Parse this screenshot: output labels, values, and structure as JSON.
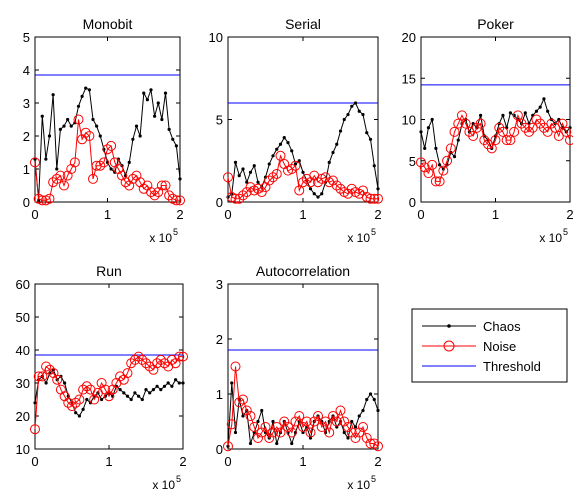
{
  "colors": {
    "chaos": "#000000",
    "noise": "#ff0000",
    "threshold": "#0000ff"
  },
  "legend": {
    "items": [
      "Chaos",
      "Noise",
      "Threshold"
    ]
  },
  "chart_data": [
    {
      "type": "line",
      "title": "Monobit",
      "xlim": [
        0,
        2
      ],
      "ylim": [
        0,
        5
      ],
      "xticks": [
        "0",
        "1",
        "2"
      ],
      "yticks": [
        "0",
        "1",
        "2",
        "3",
        "4",
        "5"
      ],
      "multiplier": {
        "base": "x 10",
        "exp": "5"
      },
      "threshold": 3.85,
      "series": [
        {
          "name": "Chaos",
          "x": [
            0,
            0.05,
            0.1,
            0.15,
            0.2,
            0.25,
            0.3,
            0.35,
            0.4,
            0.45,
            0.5,
            0.55,
            0.6,
            0.65,
            0.7,
            0.75,
            0.8,
            0.85,
            0.9,
            0.95,
            1.0,
            1.05,
            1.1,
            1.15,
            1.2,
            1.25,
            1.3,
            1.35,
            1.4,
            1.45,
            1.5,
            1.55,
            1.6,
            1.65,
            1.7,
            1.75,
            1.8,
            1.85,
            1.9,
            1.95,
            2.0
          ],
          "y": [
            1.3,
            0.05,
            2.6,
            1.3,
            2.0,
            3.25,
            1.0,
            2.2,
            2.3,
            2.5,
            2.3,
            2.4,
            2.9,
            3.2,
            3.45,
            3.4,
            2.5,
            2.3,
            2.0,
            1.6,
            1.2,
            1.0,
            0.9,
            1.3,
            1.1,
            0.8,
            1.2,
            1.9,
            2.3,
            2.0,
            3.3,
            3.1,
            3.4,
            2.6,
            3.0,
            2.5,
            3.3,
            2.2,
            1.9,
            1.7,
            0.7
          ]
        },
        {
          "name": "Noise",
          "x": [
            0,
            0.05,
            0.1,
            0.15,
            0.2,
            0.25,
            0.3,
            0.35,
            0.4,
            0.45,
            0.5,
            0.55,
            0.6,
            0.65,
            0.7,
            0.75,
            0.8,
            0.85,
            0.9,
            0.95,
            1.0,
            1.05,
            1.1,
            1.15,
            1.2,
            1.25,
            1.3,
            1.35,
            1.4,
            1.45,
            1.5,
            1.55,
            1.6,
            1.65,
            1.7,
            1.75,
            1.8,
            1.85,
            1.9,
            1.95,
            2.0
          ],
          "y": [
            1.2,
            0.1,
            0.05,
            0.05,
            0.1,
            0.6,
            0.7,
            0.8,
            0.5,
            0.8,
            1.0,
            1.2,
            2.5,
            1.9,
            2.1,
            2.0,
            0.7,
            1.1,
            1.1,
            1.2,
            1.6,
            1.7,
            1.2,
            1.0,
            0.8,
            0.6,
            0.5,
            0.7,
            0.8,
            0.6,
            0.4,
            0.5,
            0.3,
            0.2,
            0.3,
            0.5,
            0.5,
            0.2,
            0.1,
            0.05,
            0.05
          ]
        }
      ]
    },
    {
      "type": "line",
      "title": "Serial",
      "xlim": [
        0,
        2
      ],
      "ylim": [
        0,
        10
      ],
      "xticks": [
        "0",
        "1",
        "2"
      ],
      "yticks": [
        "0",
        "5",
        "10"
      ],
      "multiplier": {
        "base": "x 10",
        "exp": "5"
      },
      "threshold": 6.0,
      "series": [
        {
          "name": "Chaos",
          "x": [
            0,
            0.05,
            0.1,
            0.15,
            0.2,
            0.25,
            0.3,
            0.35,
            0.4,
            0.45,
            0.5,
            0.55,
            0.6,
            0.65,
            0.7,
            0.75,
            0.8,
            0.85,
            0.9,
            0.95,
            1.0,
            1.05,
            1.1,
            1.15,
            1.2,
            1.25,
            1.3,
            1.35,
            1.4,
            1.45,
            1.5,
            1.55,
            1.6,
            1.65,
            1.7,
            1.75,
            1.8,
            1.85,
            1.9,
            1.95,
            2.0
          ],
          "y": [
            0.3,
            0.5,
            2.4,
            1.6,
            2.0,
            1.2,
            1.8,
            2.2,
            1.2,
            0.9,
            1.5,
            2.3,
            2.8,
            3.2,
            3.5,
            3.9,
            3.6,
            3.1,
            2.3,
            2.5,
            1.8,
            1.3,
            0.8,
            0.5,
            0.3,
            0.5,
            1.2,
            2.4,
            3.0,
            3.5,
            4.3,
            5.0,
            5.3,
            5.8,
            6.0,
            5.5,
            5.3,
            4.2,
            3.8,
            2.2,
            0.8
          ]
        },
        {
          "name": "Noise",
          "x": [
            0,
            0.05,
            0.1,
            0.15,
            0.2,
            0.25,
            0.3,
            0.35,
            0.4,
            0.45,
            0.5,
            0.55,
            0.6,
            0.65,
            0.7,
            0.75,
            0.8,
            0.85,
            0.9,
            0.95,
            1.0,
            1.05,
            1.1,
            1.15,
            1.2,
            1.25,
            1.3,
            1.35,
            1.4,
            1.45,
            1.5,
            1.55,
            1.6,
            1.65,
            1.7,
            1.75,
            1.8,
            1.85,
            1.9,
            1.95,
            2.0
          ],
          "y": [
            1.5,
            0.3,
            0.2,
            0.2,
            0.4,
            0.6,
            0.9,
            0.7,
            0.8,
            0.6,
            0.9,
            1.3,
            1.5,
            1.7,
            2.8,
            2.3,
            1.9,
            2.0,
            2.2,
            0.7,
            1.2,
            1.4,
            1.2,
            1.6,
            1.2,
            1.4,
            1.5,
            1.2,
            1.3,
            1.0,
            0.8,
            0.6,
            0.5,
            0.8,
            0.6,
            0.5,
            0.7,
            0.3,
            0.2,
            0.2,
            0.2
          ]
        }
      ]
    },
    {
      "type": "line",
      "title": "Poker",
      "xlim": [
        0,
        2
      ],
      "ylim": [
        0,
        20
      ],
      "xticks": [
        "0",
        "1",
        "2"
      ],
      "yticks": [
        "0",
        "5",
        "10",
        "15",
        "20"
      ],
      "multiplier": {
        "base": "x 10",
        "exp": "5"
      },
      "threshold": 14.2,
      "series": [
        {
          "name": "Chaos",
          "x": [
            0,
            0.05,
            0.1,
            0.15,
            0.2,
            0.25,
            0.3,
            0.35,
            0.4,
            0.45,
            0.5,
            0.55,
            0.6,
            0.65,
            0.7,
            0.75,
            0.8,
            0.85,
            0.9,
            0.95,
            1.0,
            1.05,
            1.1,
            1.15,
            1.2,
            1.25,
            1.3,
            1.35,
            1.4,
            1.45,
            1.5,
            1.55,
            1.6,
            1.65,
            1.7,
            1.75,
            1.8,
            1.85,
            1.9,
            1.95,
            2.0
          ],
          "y": [
            8.5,
            6.5,
            9.0,
            10.0,
            6.5,
            4.5,
            4.0,
            4.5,
            6.0,
            5.5,
            7.5,
            9.5,
            10.0,
            8.5,
            9.5,
            9.0,
            10.5,
            8.0,
            7.5,
            6.5,
            8.0,
            9.5,
            10.5,
            9.0,
            10.8,
            10.5,
            10.0,
            9.5,
            10.8,
            9.5,
            10.5,
            11.0,
            11.5,
            12.5,
            11.0,
            10.0,
            9.5,
            10.0,
            9.0,
            8.5,
            9.0
          ]
        },
        {
          "name": "Noise",
          "x": [
            0,
            0.05,
            0.1,
            0.15,
            0.2,
            0.25,
            0.3,
            0.35,
            0.4,
            0.45,
            0.5,
            0.55,
            0.6,
            0.65,
            0.7,
            0.75,
            0.8,
            0.85,
            0.9,
            0.95,
            1.0,
            1.05,
            1.1,
            1.15,
            1.2,
            1.25,
            1.3,
            1.35,
            1.4,
            1.45,
            1.5,
            1.55,
            1.6,
            1.65,
            1.7,
            1.75,
            1.8,
            1.85,
            1.9,
            1.95,
            2.0
          ],
          "y": [
            4.8,
            4.2,
            3.5,
            4.5,
            2.5,
            2.5,
            3.8,
            5.0,
            6.5,
            8.5,
            9.5,
            10.5,
            9.5,
            8.5,
            8.0,
            9.0,
            9.5,
            7.5,
            7.0,
            6.5,
            7.5,
            9.0,
            8.5,
            7.5,
            7.5,
            8.5,
            10.5,
            9.5,
            9.0,
            8.5,
            9.0,
            10.0,
            9.5,
            9.0,
            8.5,
            9.5,
            9.0,
            8.0,
            9.5,
            8.5,
            7.5
          ]
        }
      ]
    },
    {
      "type": "line",
      "title": "Run",
      "xlim": [
        0,
        2
      ],
      "ylim": [
        10,
        60
      ],
      "xticks": [
        "0",
        "1",
        "2"
      ],
      "yticks": [
        "10",
        "20",
        "30",
        "40",
        "50",
        "60"
      ],
      "multiplier": {
        "base": "x 10",
        "exp": "5"
      },
      "threshold": 38.5,
      "series": [
        {
          "name": "Chaos",
          "x": [
            0,
            0.05,
            0.1,
            0.15,
            0.2,
            0.25,
            0.3,
            0.35,
            0.4,
            0.45,
            0.5,
            0.55,
            0.6,
            0.65,
            0.7,
            0.75,
            0.8,
            0.85,
            0.9,
            0.95,
            1.0,
            1.05,
            1.1,
            1.15,
            1.2,
            1.25,
            1.3,
            1.35,
            1.4,
            1.45,
            1.5,
            1.55,
            1.6,
            1.65,
            1.7,
            1.75,
            1.8,
            1.85,
            1.9,
            1.95,
            2.0
          ],
          "y": [
            24,
            31,
            32,
            30,
            33,
            34,
            31,
            32,
            30,
            26,
            24,
            21,
            20,
            22,
            25,
            24,
            26,
            27,
            25,
            26,
            27,
            26,
            29,
            28,
            27,
            26,
            25,
            27,
            26,
            25,
            28,
            27,
            28,
            29,
            28,
            29,
            30,
            29,
            31,
            30,
            30
          ]
        },
        {
          "name": "Noise",
          "x": [
            0,
            0.05,
            0.1,
            0.15,
            0.2,
            0.25,
            0.3,
            0.35,
            0.4,
            0.45,
            0.5,
            0.55,
            0.6,
            0.65,
            0.7,
            0.75,
            0.8,
            0.85,
            0.9,
            0.95,
            1.0,
            1.05,
            1.1,
            1.15,
            1.2,
            1.25,
            1.3,
            1.35,
            1.4,
            1.45,
            1.5,
            1.55,
            1.6,
            1.65,
            1.7,
            1.75,
            1.8,
            1.85,
            1.9,
            1.95,
            2.0
          ],
          "y": [
            16,
            32,
            32,
            35,
            34,
            33,
            31,
            28,
            26,
            24,
            23,
            24,
            25,
            28,
            29,
            28,
            25,
            27,
            30,
            28,
            26,
            28,
            30,
            32,
            31,
            33,
            36,
            37,
            38,
            37,
            36,
            35,
            34,
            36,
            37,
            36,
            35,
            37,
            36,
            38,
            38
          ]
        }
      ]
    },
    {
      "type": "line",
      "title": "Autocorrelation",
      "xlim": [
        0,
        2
      ],
      "ylim": [
        0,
        3
      ],
      "xticks": [
        "0",
        "1",
        "2"
      ],
      "yticks": [
        "0",
        "1",
        "2",
        "3"
      ],
      "multiplier": {
        "base": "x 10",
        "exp": "5"
      },
      "threshold": 1.8,
      "series": [
        {
          "name": "Chaos",
          "x": [
            0,
            0.05,
            0.1,
            0.15,
            0.2,
            0.25,
            0.3,
            0.35,
            0.4,
            0.45,
            0.5,
            0.55,
            0.6,
            0.65,
            0.7,
            0.75,
            0.8,
            0.85,
            0.9,
            0.95,
            1.0,
            1.05,
            1.1,
            1.15,
            1.2,
            1.25,
            1.3,
            1.35,
            1.4,
            1.45,
            1.5,
            1.55,
            1.6,
            1.65,
            1.7,
            1.75,
            1.8,
            1.85,
            1.9,
            1.95,
            2.0
          ],
          "y": [
            0.05,
            1.2,
            0.3,
            0.9,
            0.6,
            0.7,
            0.1,
            0.3,
            0.5,
            0.7,
            0.3,
            0.2,
            0.5,
            0.1,
            0.3,
            0.5,
            0.3,
            0.1,
            0.3,
            0.5,
            0.3,
            0.4,
            0.2,
            0.5,
            0.6,
            0.5,
            0.3,
            0.5,
            0.6,
            0.4,
            0.5,
            0.3,
            0.2,
            0.5,
            0.4,
            0.6,
            0.7,
            0.9,
            1.0,
            0.9,
            0.7
          ]
        },
        {
          "name": "Noise",
          "x": [
            0,
            0.05,
            0.1,
            0.15,
            0.2,
            0.25,
            0.3,
            0.35,
            0.4,
            0.45,
            0.5,
            0.55,
            0.6,
            0.65,
            0.7,
            0.75,
            0.8,
            0.85,
            0.9,
            0.95,
            1.0,
            1.05,
            1.1,
            1.15,
            1.2,
            1.25,
            1.3,
            1.35,
            1.4,
            1.45,
            1.5,
            1.55,
            1.6,
            1.65,
            1.7,
            1.75,
            1.8,
            1.85,
            1.9,
            1.95,
            2.0
          ],
          "y": [
            0.05,
            0.45,
            1.5,
            0.85,
            0.9,
            0.7,
            0.6,
            0.4,
            0.2,
            0.3,
            0.4,
            0.2,
            0.3,
            0.4,
            0.3,
            0.5,
            0.4,
            0.3,
            0.5,
            0.6,
            0.4,
            0.5,
            0.3,
            0.5,
            0.6,
            0.4,
            0.5,
            0.3,
            0.6,
            0.5,
            0.7,
            0.5,
            0.4,
            0.3,
            0.2,
            0.3,
            0.4,
            0.2,
            0.1,
            0.1,
            0.05
          ]
        }
      ]
    }
  ]
}
